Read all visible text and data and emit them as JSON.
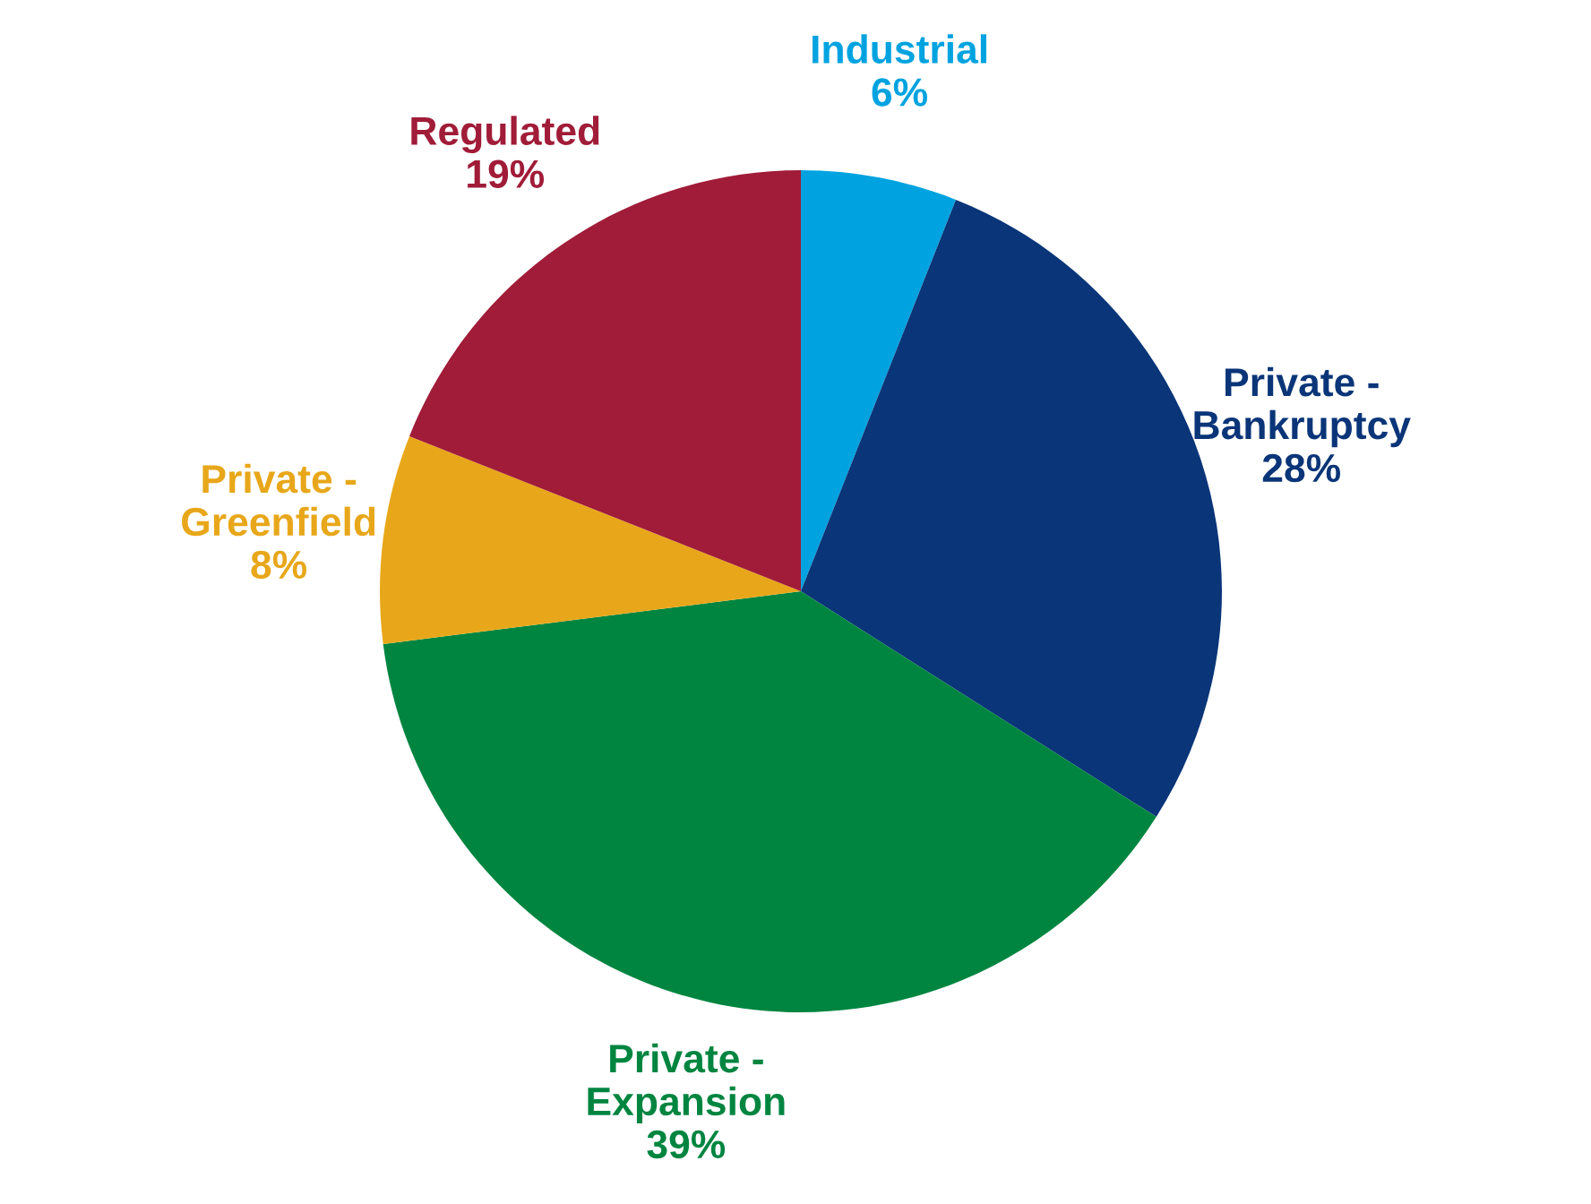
{
  "chart_data": {
    "type": "pie",
    "categories": [
      "Industrial",
      "Private -\nBankruptcy",
      "Private -\nExpansion",
      "Private -\nGreenfield",
      "Regulated"
    ],
    "values": [
      6,
      28,
      39,
      8,
      19
    ],
    "value_labels": [
      "6%",
      "28%",
      "39%",
      "8%",
      "19%"
    ],
    "colors": [
      "#00a3e0",
      "#0a3578",
      "#008540",
      "#e8a71a",
      "#a01c38"
    ],
    "legend": false
  }
}
